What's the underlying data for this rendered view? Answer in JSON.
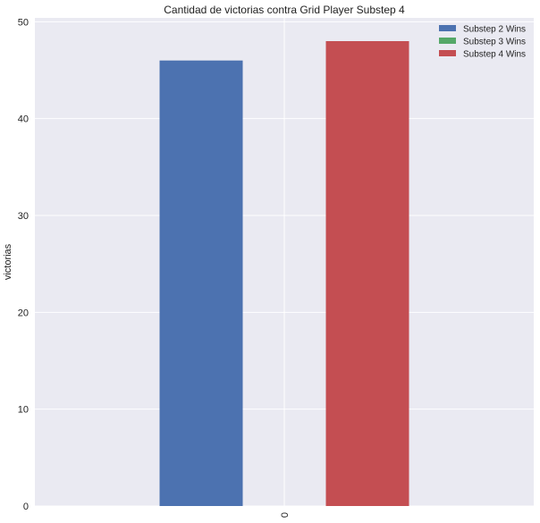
{
  "chart_data": {
    "type": "bar",
    "title": "Cantidad de victorias contra Grid Player Substep 4",
    "xlabel": "",
    "ylabel": "victorias",
    "categories": [
      "0"
    ],
    "series": [
      {
        "name": "Substep 2 Wins",
        "values": [
          46
        ],
        "color": "#4C72B0"
      },
      {
        "name": "Substep 3 Wins",
        "values": [
          0
        ],
        "color": "#55A868"
      },
      {
        "name": "Substep 4 Wins",
        "values": [
          48
        ],
        "color": "#C44E52"
      }
    ],
    "ylim": [
      0,
      50.4
    ],
    "yticks": [
      0,
      10,
      20,
      30,
      40,
      50
    ],
    "grid": true,
    "legend_position": "top-right",
    "background_color": "#EAEAF2",
    "grid_color": "#FFFFFF"
  }
}
